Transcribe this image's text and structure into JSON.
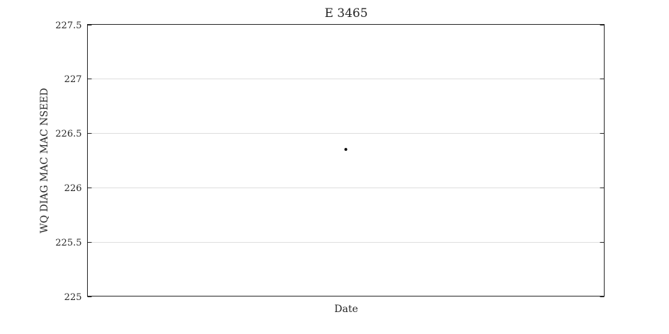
{
  "chart_data": {
    "type": "scatter",
    "title": "E 3465",
    "xlabel": "Date",
    "ylabel": "WQ DIAG MAC MAC NSEED",
    "ylim": [
      225,
      227.5
    ],
    "yticks": [
      225,
      225.5,
      226,
      226.5,
      227,
      227.5
    ],
    "ytick_labels": [
      "225",
      "225.5",
      "226",
      "226.5",
      "227",
      "227.5"
    ],
    "xlim": [
      0,
      1
    ],
    "grid": "horizontal",
    "marker_color": "#000000",
    "series": [
      {
        "points": [
          {
            "x": 0.5,
            "y": 226.35
          }
        ]
      }
    ]
  }
}
